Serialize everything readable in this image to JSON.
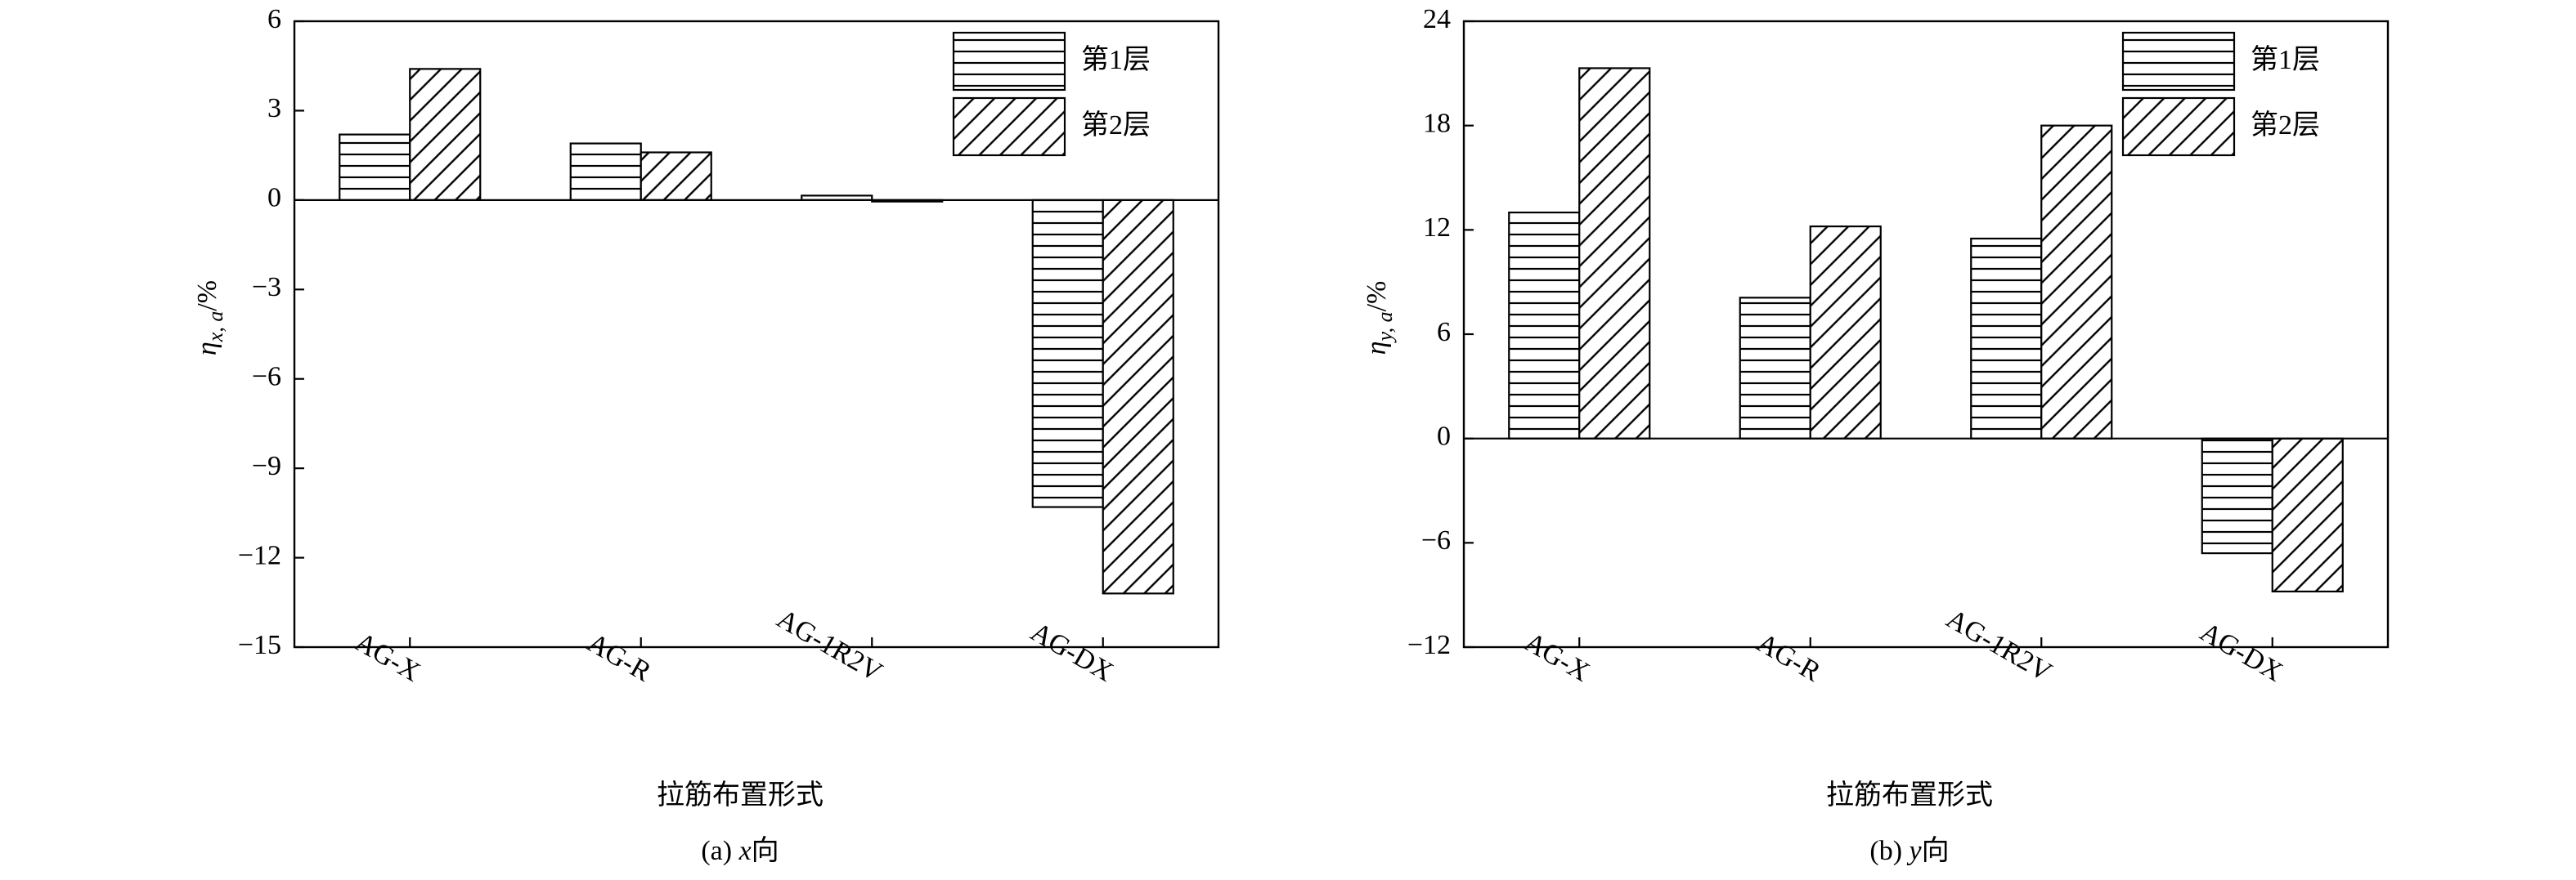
{
  "chart_data": [
    {
      "type": "bar",
      "ylabel": {
        "symbol": "η",
        "subscript": "x, a",
        "unit": "/%"
      },
      "xlabel": "拉筋布置形式",
      "caption": {
        "prefix": "(a)",
        "variable": "x",
        "suffix": "向"
      },
      "categories": [
        "AG-X",
        "AG-R",
        "AG-1R2V",
        "AG-DX"
      ],
      "series": [
        {
          "name": "第1层",
          "color": "#000000",
          "pattern": "horizontal",
          "values": [
            2.2,
            1.9,
            0.15,
            -10.3
          ]
        },
        {
          "name": "第2层",
          "color": "#000000",
          "pattern": "diagonal",
          "values": [
            4.4,
            1.6,
            -0.05,
            -13.2
          ]
        }
      ],
      "ylim": [
        -15,
        6
      ],
      "yticks": [
        {
          "value": -15,
          "label": "−15"
        },
        {
          "value": -12,
          "label": "−12"
        },
        {
          "value": -9,
          "label": "−9"
        },
        {
          "value": -6,
          "label": "−6"
        },
        {
          "value": -3,
          "label": "−3"
        },
        0,
        3,
        6
      ],
      "legend": "upper right",
      "grid": false
    },
    {
      "type": "bar",
      "ylabel": {
        "symbol": "η",
        "subscript": "y, a",
        "unit": "/%"
      },
      "xlabel": "拉筋布置形式",
      "caption": {
        "prefix": "(b)",
        "variable": "y",
        "suffix": "向"
      },
      "categories": [
        "AG-X",
        "AG-R",
        "AG-1R2V",
        "AG-DX"
      ],
      "series": [
        {
          "name": "第1层",
          "color": "#000000",
          "pattern": "horizontal",
          "values": [
            13.0,
            8.1,
            11.5,
            -6.6
          ]
        },
        {
          "name": "第2层",
          "color": "#000000",
          "pattern": "diagonal",
          "values": [
            21.3,
            12.2,
            18.0,
            -8.8
          ]
        }
      ],
      "ylim": [
        -12,
        24
      ],
      "yticks": [
        {
          "value": -12,
          "label": "−12"
        },
        {
          "value": -6,
          "label": "−6"
        },
        0,
        6,
        12,
        18,
        24
      ],
      "legend": "upper right",
      "grid": false
    }
  ]
}
